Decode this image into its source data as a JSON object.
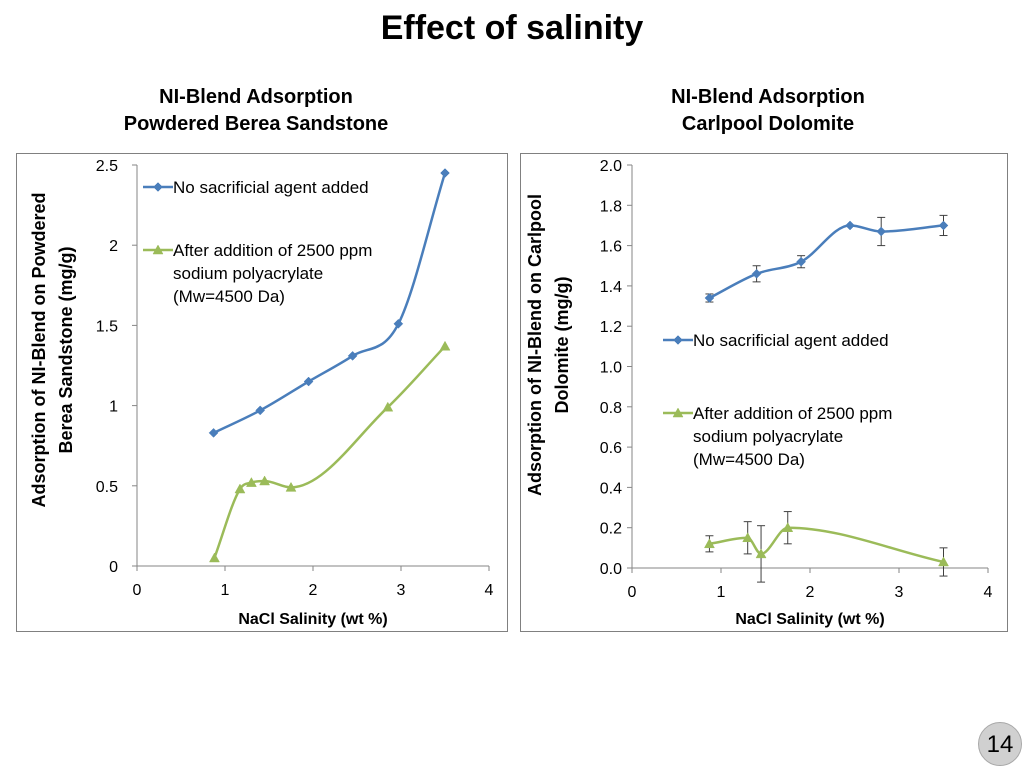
{
  "slide": {
    "title": "Effect of salinity",
    "page_number": "14"
  },
  "colors": {
    "series_blue": "#4a7ebb",
    "series_green": "#9bbb59",
    "axis": "#868686",
    "errorbar": "#404040"
  },
  "chart_data": [
    {
      "type": "line",
      "heading": [
        "NI-Blend Adsorption",
        "Powdered Berea Sandstone"
      ],
      "xlabel": "NaCl Salinity (wt %)",
      "ylabel": [
        "Adsorption of NI-Blend on Powdered",
        "Berea Sandstone (mg/g)"
      ],
      "xlim": [
        0,
        4
      ],
      "ylim": [
        0,
        2.5
      ],
      "xticks": [
        "0",
        "1",
        "2",
        "3",
        "4"
      ],
      "yticks": [
        "0",
        "0.5",
        "1",
        "1.5",
        "2",
        "2.5"
      ],
      "grid": false,
      "legend_position": "top-left",
      "series": [
        {
          "name": "No sacrificial agent added",
          "marker": "diamond",
          "color": "#4a7ebb",
          "x": [
            0.87,
            1.4,
            1.95,
            2.45,
            2.97,
            3.5
          ],
          "y": [
            0.83,
            0.97,
            1.15,
            1.31,
            1.51,
            2.45
          ]
        },
        {
          "name": "After addition of 2500 ppm sodium polyacrylate (Mw=4500 Da)",
          "legend_lines": [
            "After addition of 2500 ppm",
            "sodium polyacrylate",
            "(Mw=4500 Da)"
          ],
          "marker": "triangle",
          "color": "#9bbb59",
          "x": [
            0.88,
            1.17,
            1.3,
            1.45,
            1.75,
            2.85,
            3.5
          ],
          "y": [
            0.05,
            0.48,
            0.52,
            0.53,
            0.49,
            0.99,
            1.37
          ]
        }
      ]
    },
    {
      "type": "line",
      "heading": [
        "NI-Blend Adsorption",
        "Carlpool Dolomite"
      ],
      "xlabel": "NaCl Salinity (wt %)",
      "ylabel": [
        "Adsorption of NI-Blend on Carlpool",
        "Dolomite (mg/g)"
      ],
      "xlim": [
        0,
        4
      ],
      "ylim": [
        0,
        2.0
      ],
      "xticks": [
        "0",
        "1",
        "2",
        "3",
        "4"
      ],
      "yticks": [
        "0.0",
        "0.2",
        "0.4",
        "0.6",
        "0.8",
        "1.0",
        "1.2",
        "1.4",
        "1.6",
        "1.8",
        "2.0"
      ],
      "grid": false,
      "legend_position": "center-right",
      "series": [
        {
          "name": "No sacrificial agent added",
          "marker": "diamond",
          "color": "#4a7ebb",
          "x": [
            0.87,
            1.4,
            1.9,
            2.45,
            2.8,
            3.5
          ],
          "y": [
            1.34,
            1.46,
            1.52,
            1.7,
            1.67,
            1.7
          ],
          "err": [
            0.02,
            0.04,
            0.03,
            0.0,
            0.07,
            0.05
          ]
        },
        {
          "name": "After addition of 2500 ppm sodium polyacrylate (Mw=4500 Da)",
          "legend_lines": [
            "After addition of 2500 ppm",
            "sodium polyacrylate",
            "(Mw=4500 Da)"
          ],
          "marker": "triangle",
          "color": "#9bbb59",
          "x": [
            0.87,
            1.3,
            1.45,
            1.75,
            3.5
          ],
          "y": [
            0.12,
            0.15,
            0.07,
            0.2,
            0.03
          ],
          "err": [
            0.04,
            0.08,
            0.14,
            0.08,
            0.07
          ]
        }
      ]
    }
  ]
}
